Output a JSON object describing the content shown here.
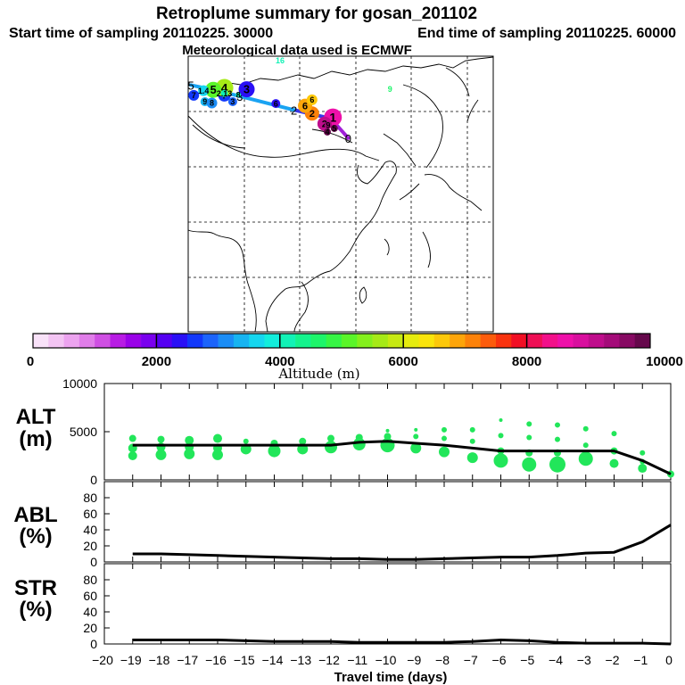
{
  "header": {
    "title": "Retroplume summary for gosan_201102",
    "start_label": "Start time of sampling 20110225. 30000",
    "end_label": "End time of sampling 20110225. 60000",
    "met_label": "Meteorological data used is ECMWF"
  },
  "map": {
    "track_points": [
      {
        "label": "0",
        "lon": 126.5,
        "lat": 33.3,
        "alt": 500
      },
      {
        "label": "1",
        "lon": 120.2,
        "lat": 40.4,
        "alt": 8600
      },
      {
        "label": "2",
        "lon": 107.0,
        "lat": 43.5,
        "alt": 4000
      },
      {
        "label": "3",
        "lon": 87.5,
        "lat": 48.5,
        "alt": 3000
      },
      {
        "label": "4",
        "lon": 77.0,
        "lat": 51.0,
        "alt": 2500
      },
      {
        "label": "5",
        "lon": 70.0,
        "lat": 52.5,
        "alt": 2000
      }
    ],
    "plume_labels": [
      {
        "text": "1",
        "lon": 121.0,
        "lat": 40.8,
        "alt": 8700,
        "size": 10
      },
      {
        "text": "2",
        "lon": 118.0,
        "lat": 38.5,
        "alt": 9200,
        "size": 8
      },
      {
        "text": "4",
        "lon": 119.0,
        "lat": 35.5,
        "alt": 9800,
        "size": 4
      },
      {
        "text": "5",
        "lon": 121.5,
        "lat": 36.8,
        "alt": 9900,
        "size": 4
      },
      {
        "text": "9",
        "lon": 119.3,
        "lat": 38.0,
        "alt": 9400,
        "size": 4
      },
      {
        "text": "2",
        "lon": 113.5,
        "lat": 42.2,
        "alt": 7000,
        "size": 8
      },
      {
        "text": "6",
        "lon": 111.0,
        "lat": 45.0,
        "alt": 6800,
        "size": 8
      },
      {
        "text": "7",
        "lon": 82.0,
        "lat": 48.8,
        "alt": 2700,
        "size": 7
      },
      {
        "text": "4",
        "lon": 82.0,
        "lat": 51.5,
        "alt": 5500,
        "size": 10
      },
      {
        "text": "3",
        "lon": 90.0,
        "lat": 51.0,
        "alt": 2300,
        "size": 9
      },
      {
        "text": "5",
        "lon": 78.0,
        "lat": 50.8,
        "alt": 5200,
        "size": 9
      },
      {
        "text": "1.4",
        "lon": 74.5,
        "lat": 50.5,
        "alt": 3600,
        "size": 6
      },
      {
        "text": "7",
        "lon": 71.0,
        "lat": 48.8,
        "alt": 2600,
        "size": 6
      },
      {
        "text": "9",
        "lon": 75.0,
        "lat": 46.5,
        "alt": 3300,
        "size": 5
      },
      {
        "text": "8",
        "lon": 77.5,
        "lat": 46.0,
        "alt": 3200,
        "size": 6
      },
      {
        "text": "3",
        "lon": 85.0,
        "lat": 46.5,
        "alt": 2900,
        "size": 5
      },
      {
        "text": "6",
        "lon": 100.5,
        "lat": 45.8,
        "alt": 2400,
        "size": 5
      },
      {
        "text": "6",
        "lon": 113.5,
        "lat": 47.2,
        "alt": 6600,
        "size": 6
      },
      {
        "text": "2.13",
        "lon": 82.0,
        "lat": 49.5,
        "alt": 4200,
        "size": 4
      },
      {
        "text": "8",
        "lon": 87.0,
        "lat": 49.0,
        "alt": 4100,
        "size": 3
      },
      {
        "text": "16",
        "lon": 102.0,
        "lat": 61.5,
        "alt": 4100,
        "size": 2
      },
      {
        "text": "9",
        "lon": 141.5,
        "lat": 51.0,
        "alt": 4500,
        "size": 2
      }
    ]
  },
  "colorbar": {
    "tick_labels": [
      "0",
      "2000",
      "4000",
      "6000",
      "8000",
      "10000"
    ],
    "title": "Altitude (m)",
    "min": 0,
    "max": 10000,
    "colors": [
      "#f9e2f9",
      "#f3c4f3",
      "#eca3ef",
      "#e07de9",
      "#cf4fe3",
      "#b81ce4",
      "#9a02e8",
      "#7a00ee",
      "#5500f2",
      "#2a10f6",
      "#1238fb",
      "#1c64fb",
      "#1b8df6",
      "#17b4f1",
      "#15d6ef",
      "#12eedc",
      "#11f2b6",
      "#14f38d",
      "#1df56a",
      "#37f545",
      "#5af529",
      "#84f01c",
      "#a6ea17",
      "#c7e912",
      "#e6ec0e",
      "#fae40b",
      "#fcc80a",
      "#fda50a",
      "#fc820a",
      "#fc5c0c",
      "#f9330f",
      "#f10f24",
      "#ef0f55",
      "#f2108a",
      "#ee10a9",
      "#d80f9e",
      "#bf0d8c",
      "#a40b79",
      "#870a63",
      "#65084b"
    ]
  },
  "chart_data": [
    {
      "type": "line",
      "panel": "ALT",
      "ylabel_top": "ALT",
      "ylabel_unit": "(m)",
      "ylim": [
        0,
        10000
      ],
      "yticks": [
        0,
        5000,
        10000
      ],
      "ytick_labels": [
        "0",
        "5000",
        "10000"
      ],
      "x": [
        0,
        -1,
        -2,
        -3,
        -4,
        -5,
        -6,
        -7,
        -8,
        -9,
        -10,
        -11,
        -12,
        -13,
        -14,
        -15,
        -16,
        -17,
        -18,
        -19
      ],
      "median": [
        600,
        2000,
        3000,
        3000,
        3000,
        3000,
        3000,
        3300,
        3600,
        3800,
        4000,
        3900,
        3600,
        3600,
        3600,
        3600,
        3600,
        3600,
        3600,
        3600
      ],
      "spread": [
        {
          "x": 0,
          "points": [
            [
              600,
              4
            ]
          ]
        },
        {
          "x": -1,
          "points": [
            [
              1200,
              5
            ],
            [
              1900,
              3
            ],
            [
              2800,
              3
            ]
          ]
        },
        {
          "x": -2,
          "points": [
            [
              1700,
              5
            ],
            [
              3000,
              4
            ],
            [
              4800,
              3
            ]
          ]
        },
        {
          "x": -3,
          "points": [
            [
              2200,
              8
            ],
            [
              3600,
              3
            ],
            [
              5300,
              3
            ]
          ]
        },
        {
          "x": -4,
          "points": [
            [
              1600,
              9
            ],
            [
              2800,
              4
            ],
            [
              4200,
              3
            ],
            [
              5700,
              3
            ]
          ]
        },
        {
          "x": -5,
          "points": [
            [
              1600,
              8
            ],
            [
              2800,
              4
            ],
            [
              4400,
              3
            ],
            [
              5800,
              3
            ]
          ]
        },
        {
          "x": -6,
          "points": [
            [
              2000,
              8
            ],
            [
              3000,
              4
            ],
            [
              4600,
              3
            ],
            [
              6200,
              2
            ]
          ]
        },
        {
          "x": -7,
          "points": [
            [
              2300,
              6
            ],
            [
              4000,
              3
            ],
            [
              5200,
              3
            ]
          ]
        },
        {
          "x": -8,
          "points": [
            [
              2900,
              6
            ],
            [
              4300,
              3
            ],
            [
              5200,
              3
            ]
          ]
        },
        {
          "x": -9,
          "points": [
            [
              3300,
              6
            ],
            [
              4500,
              3
            ],
            [
              5200,
              2
            ]
          ]
        },
        {
          "x": -10,
          "points": [
            [
              3600,
              8
            ],
            [
              4500,
              4
            ],
            [
              5100,
              2
            ]
          ]
        },
        {
          "x": -11,
          "points": [
            [
              3700,
              7
            ],
            [
              4400,
              4
            ]
          ]
        },
        {
          "x": -12,
          "points": [
            [
              3400,
              7
            ],
            [
              4300,
              4
            ]
          ]
        },
        {
          "x": -13,
          "points": [
            [
              3200,
              6
            ],
            [
              4000,
              4
            ]
          ]
        },
        {
          "x": -14,
          "points": [
            [
              3000,
              7
            ],
            [
              3800,
              4
            ]
          ]
        },
        {
          "x": -15,
          "points": [
            [
              3200,
              6
            ],
            [
              4000,
              3
            ]
          ]
        },
        {
          "x": -16,
          "points": [
            [
              2600,
              6
            ],
            [
              3300,
              5
            ],
            [
              4300,
              5
            ]
          ]
        },
        {
          "x": -17,
          "points": [
            [
              2700,
              6
            ],
            [
              3400,
              5
            ],
            [
              4100,
              5
            ]
          ]
        },
        {
          "x": -18,
          "points": [
            [
              2600,
              6
            ],
            [
              3400,
              5
            ],
            [
              4200,
              4
            ]
          ]
        },
        {
          "x": -19,
          "points": [
            [
              2500,
              5
            ],
            [
              3300,
              5
            ],
            [
              4300,
              4
            ]
          ]
        }
      ]
    },
    {
      "type": "line",
      "panel": "ABL",
      "ylabel_top": "ABL",
      "ylabel_unit": "(%)",
      "ylim": [
        0,
        100
      ],
      "yticks": [
        0,
        20,
        40,
        60,
        80
      ],
      "ytick_labels": [
        "0",
        "20",
        "40",
        "60",
        "80"
      ],
      "x": [
        0,
        -1,
        -2,
        -3,
        -4,
        -5,
        -6,
        -7,
        -8,
        -9,
        -10,
        -11,
        -12,
        -13,
        -14,
        -15,
        -16,
        -17,
        -18,
        -19
      ],
      "values": [
        46,
        25,
        12,
        11,
        8,
        6,
        6,
        5,
        4,
        3,
        3,
        4,
        4,
        5,
        6,
        7,
        8,
        9,
        10,
        10
      ]
    },
    {
      "type": "line",
      "panel": "STR",
      "ylabel_top": "STR",
      "ylabel_unit": "(%)",
      "ylim": [
        0,
        100
      ],
      "yticks": [
        0,
        20,
        40,
        60,
        80
      ],
      "ytick_labels": [
        "0",
        "20",
        "40",
        "60",
        "80"
      ],
      "x": [
        0,
        -1,
        -2,
        -3,
        -4,
        -5,
        -6,
        -7,
        -8,
        -9,
        -10,
        -11,
        -12,
        -13,
        -14,
        -15,
        -16,
        -17,
        -18,
        -19
      ],
      "values": [
        0,
        1,
        1,
        1,
        2,
        4,
        5,
        3,
        2,
        2,
        2,
        2,
        3,
        3,
        3,
        4,
        5,
        5,
        5,
        5
      ]
    }
  ],
  "xaxis": {
    "title": "Travel time (days)",
    "xlim": [
      -20,
      0
    ],
    "ticks": [
      -20,
      -19,
      -18,
      -17,
      -16,
      -15,
      -14,
      -13,
      -12,
      -11,
      -10,
      -9,
      -8,
      -7,
      -6,
      -5,
      -4,
      -3,
      -2,
      -1,
      0
    ],
    "tick_labels": [
      "−20",
      "−19",
      "−18",
      "−17",
      "−16",
      "−15",
      "−14",
      "−13",
      "−12",
      "−11",
      "−10",
      "−9",
      "−8",
      "−7",
      "−6",
      "−5",
      "−4",
      "−3",
      "−2",
      "−1",
      "0"
    ]
  },
  "colors": {
    "spread": "#22e65a",
    "line": "#000000",
    "track_light": "#1aa3f2",
    "track_mid": "#3a36e6",
    "track_dark": "#a020d8"
  }
}
